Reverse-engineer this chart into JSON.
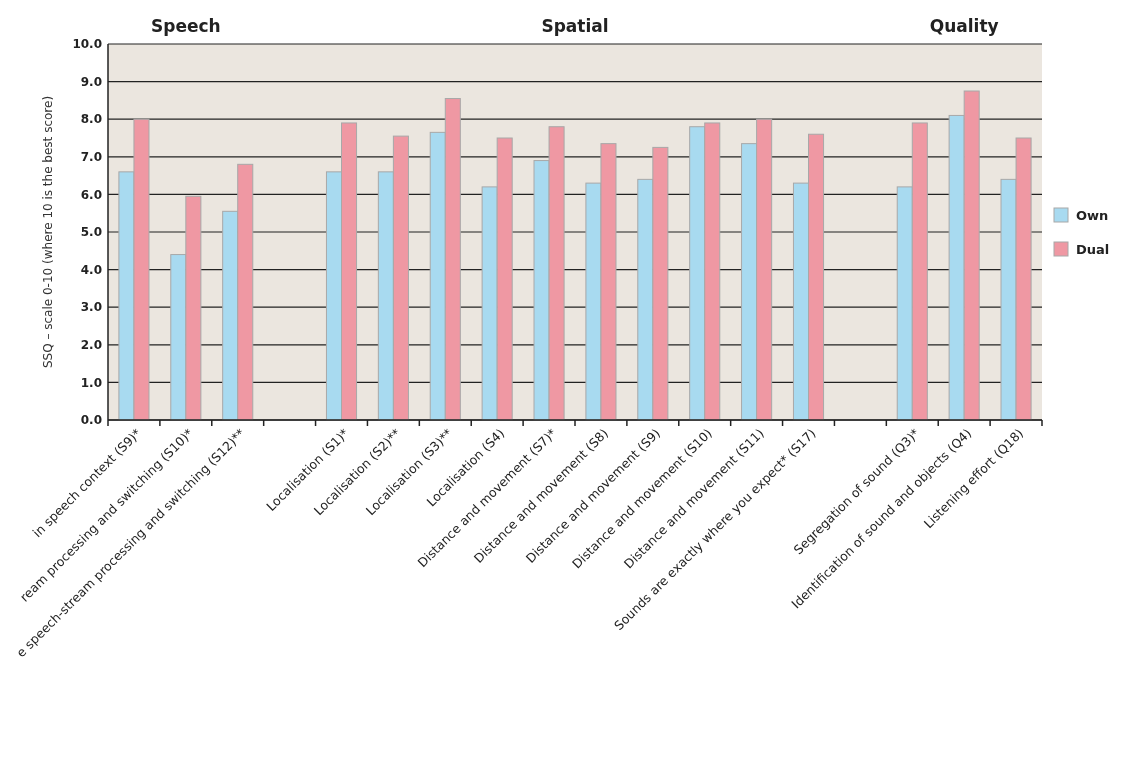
{
  "chart_data": {
    "type": "bar",
    "annotations": [
      "Speech",
      "Spatial",
      "Quality"
    ],
    "ylabel": "SSQ – scale 0-10 (where 10 is the best score)",
    "categories": [
      "in speech context (S9)*",
      "ream processing and switching (S10)*",
      "e speech-stream processing and switching (S12)**",
      null,
      "Localisation (S1)*",
      "Localisation (S2)**",
      "Localisation (S3)**",
      "Localisation (S4)",
      "Distance and movement (S7)*",
      "Distance and movement (S8)",
      "Distance and movement (S9)",
      "Distance and movement (S10)",
      "Distance and movement (S11)",
      "Sounds are exactly where you expect* (S17)",
      null,
      "Segregation of sound (Q3)*",
      "Identification of sound and objects (Q4)",
      "Listening effort (Q18)"
    ],
    "series": [
      {
        "name": "Own",
        "color": "#a8daf0",
        "values": [
          6.6,
          4.4,
          5.55,
          null,
          6.6,
          6.6,
          7.65,
          6.2,
          6.9,
          6.3,
          6.4,
          7.8,
          7.35,
          6.3,
          null,
          6.2,
          8.1,
          6.4
        ]
      },
      {
        "name": "Dual",
        "color": "#ef98a3",
        "values": [
          8.0,
          5.95,
          6.8,
          null,
          7.9,
          7.55,
          8.55,
          7.5,
          7.8,
          7.35,
          7.25,
          7.9,
          8.0,
          7.6,
          null,
          7.9,
          8.75,
          7.5
        ]
      }
    ],
    "ylim": [
      0,
      10
    ],
    "yticks": [
      {
        "value": 0,
        "label": "0.0"
      },
      {
        "value": 1,
        "label": "1.0"
      },
      {
        "value": 2,
        "label": "2.0"
      },
      {
        "value": 3,
        "label": "3.0"
      },
      {
        "value": 4,
        "label": "4.0"
      },
      {
        "value": 5,
        "label": "5.0"
      },
      {
        "value": 6,
        "label": "6.0"
      },
      {
        "value": 7,
        "label": "7.0"
      },
      {
        "value": 8,
        "label": "8.0"
      },
      {
        "value": 9,
        "label": "9.0"
      },
      {
        "value": 10,
        "label": "10.0"
      }
    ],
    "grid": "y",
    "legend": "right"
  }
}
